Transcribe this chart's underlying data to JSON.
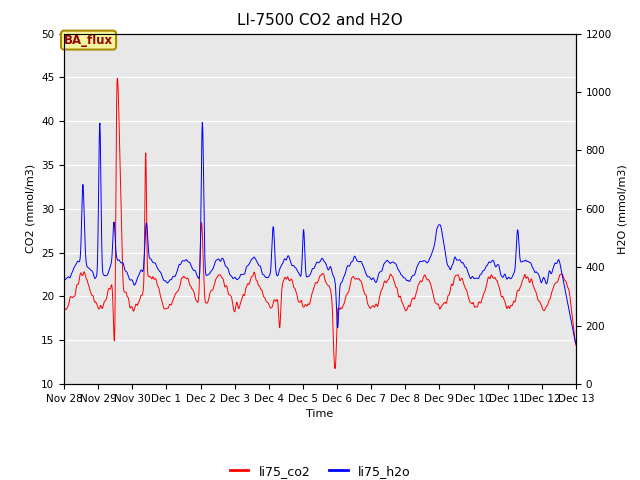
{
  "title": "LI-7500 CO2 and H2O",
  "xlabel": "Time",
  "ylabel_left": "CO2 (mmol/m3)",
  "ylabel_right": "H2O (mmol/m3)",
  "ylim_left": [
    10,
    50
  ],
  "ylim_right": [
    0,
    1200
  ],
  "legend_labels": [
    "li75_co2",
    "li75_h2o"
  ],
  "co2_color": "red",
  "h2o_color": "blue",
  "plot_bg_color": "#e8e8e8",
  "fig_bg_color": "#ffffff",
  "annotation_text": "BA_flux",
  "annotation_bg": "#f5f5a0",
  "annotation_border": "#aa8800",
  "annotation_text_color": "#990000",
  "title_fontsize": 11,
  "axis_fontsize": 8,
  "tick_fontsize": 7.5,
  "line_width": 0.7,
  "tick_labels": [
    "Nov 28",
    "Nov 29",
    "Nov 30",
    "Dec 1",
    "Dec 2",
    "Dec 3",
    "Dec 4",
    "Dec 5",
    "Dec 6",
    "Dec 7",
    "Dec 8",
    "Dec 9",
    "Dec 10",
    "Dec 11",
    "Dec 12",
    "Dec 13"
  ],
  "yticks_left": [
    10,
    15,
    20,
    25,
    30,
    35,
    40,
    45,
    50
  ],
  "yticks_right": [
    0,
    200,
    400,
    600,
    800,
    1000,
    1200
  ]
}
